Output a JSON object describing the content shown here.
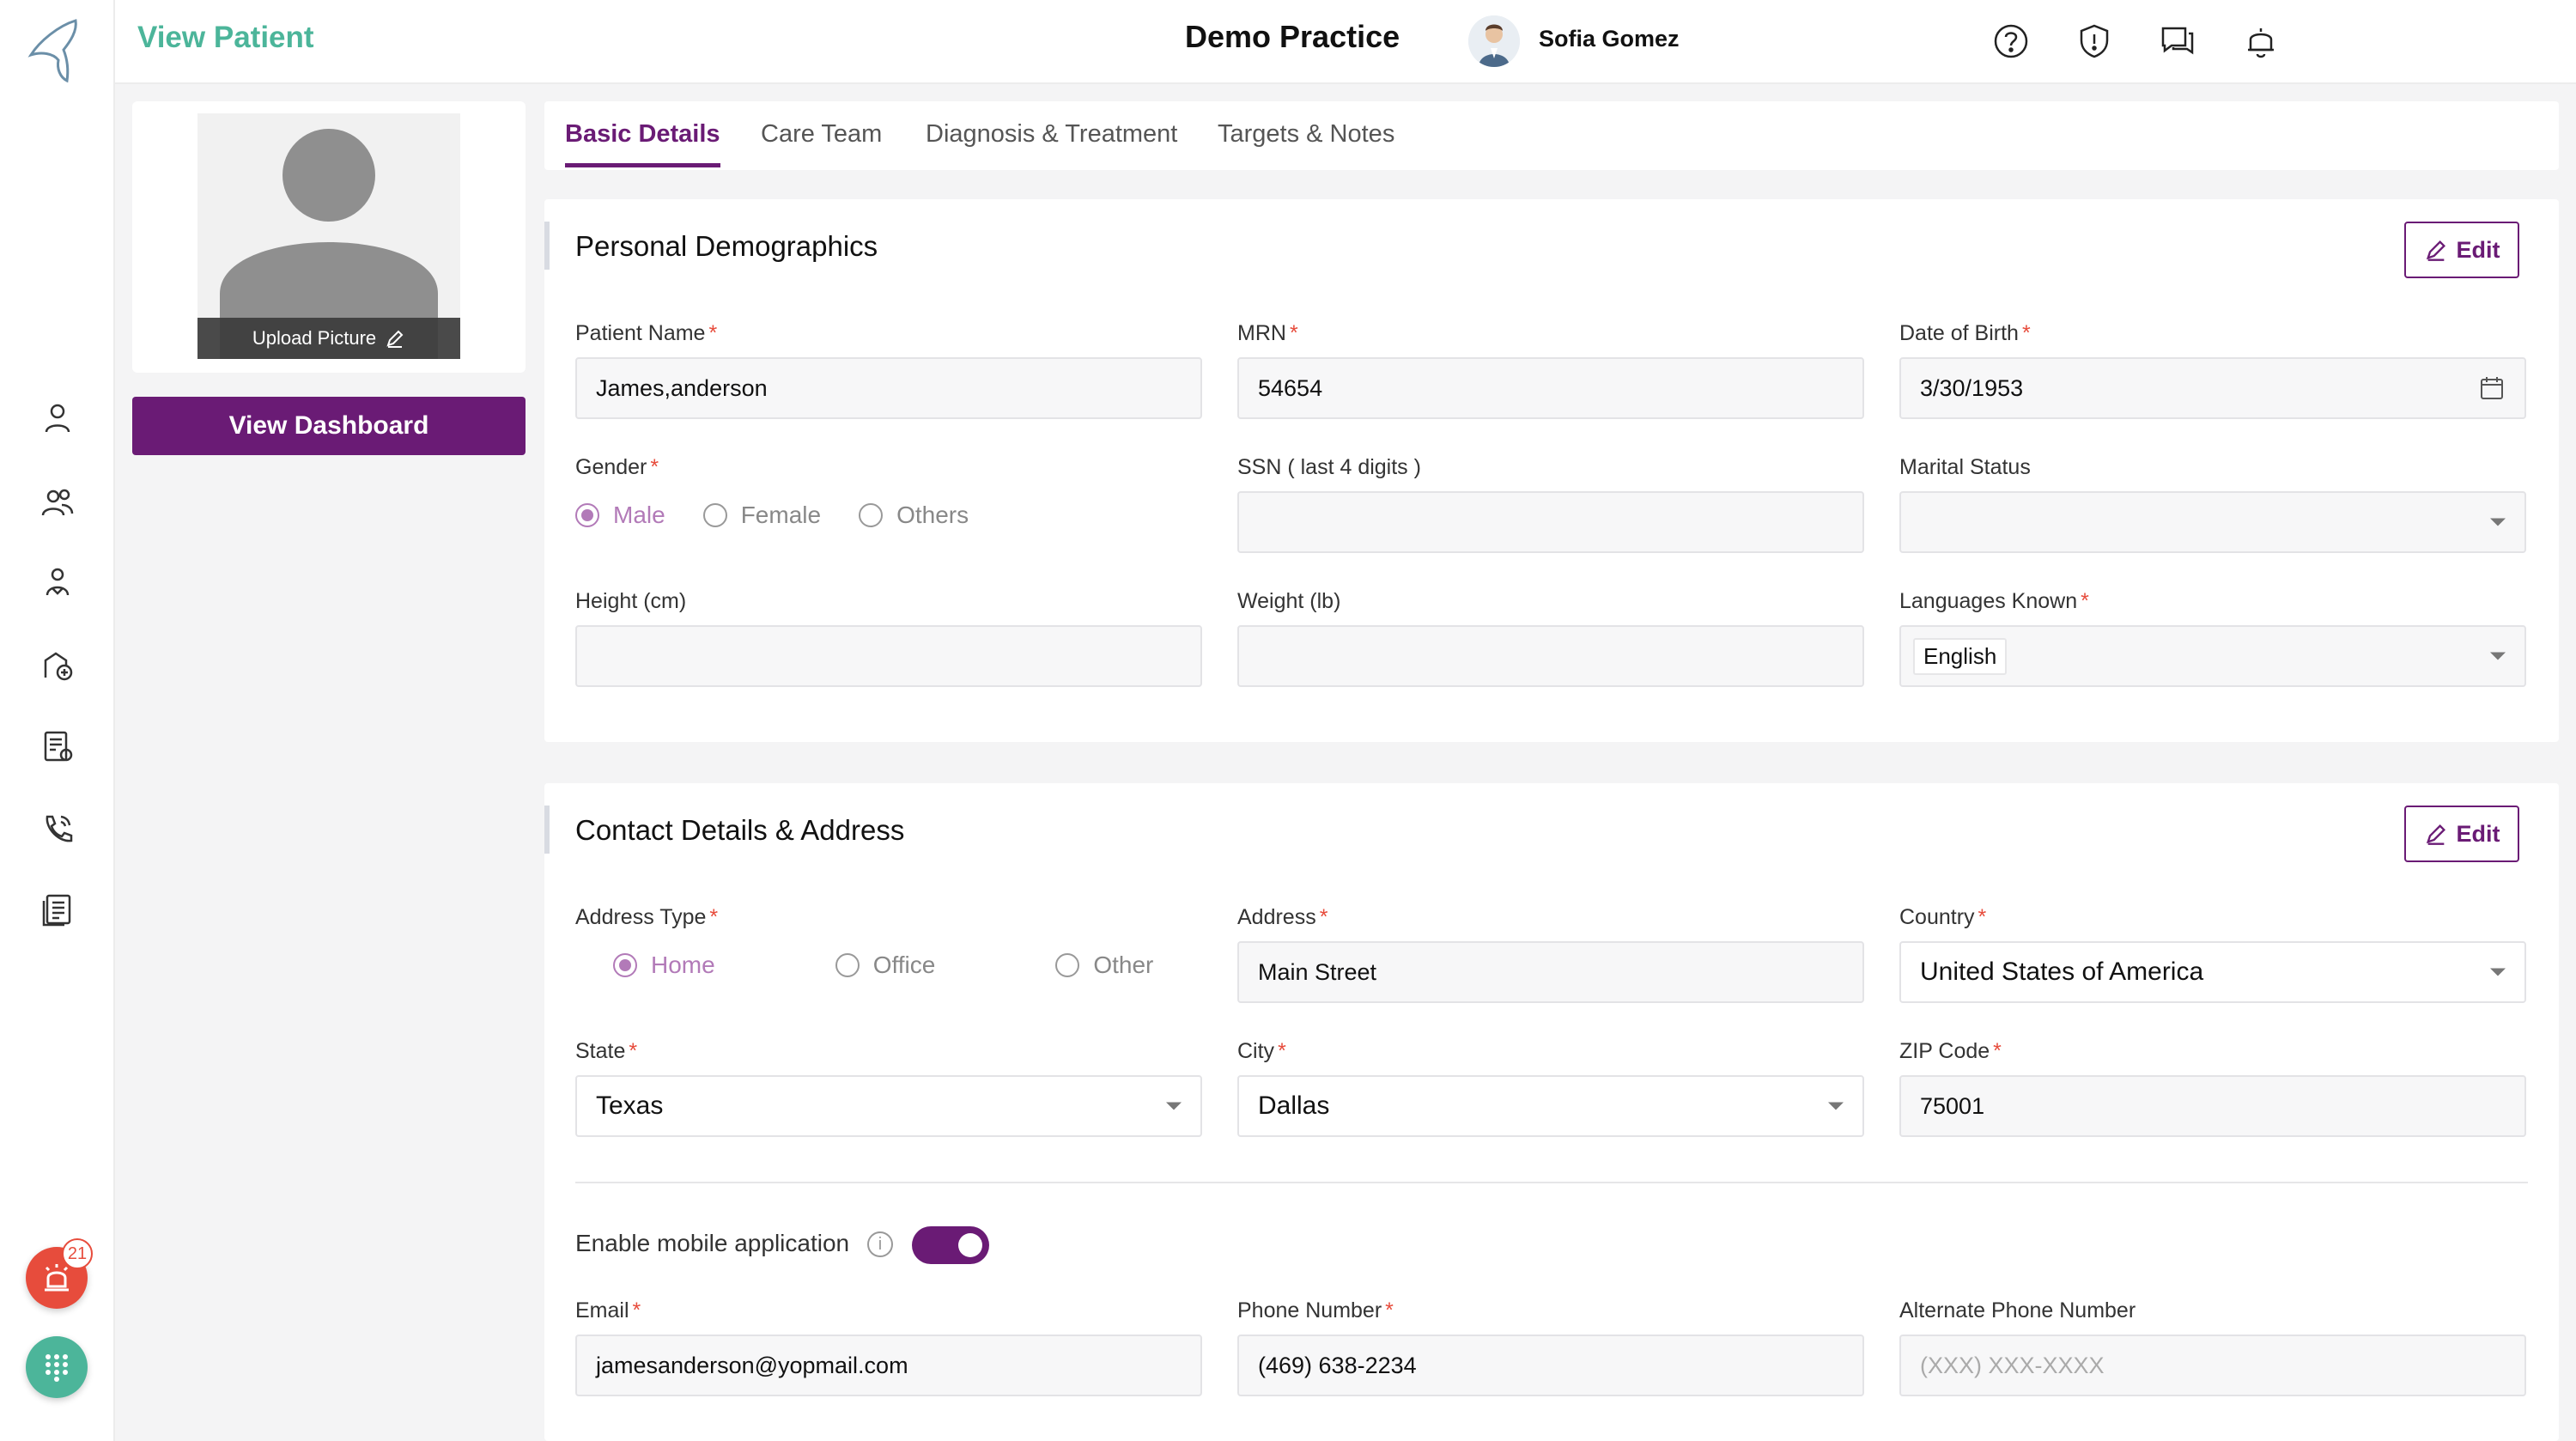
{
  "header": {
    "page_title": "View Patient",
    "practice_title": "Demo Practice",
    "user_name": "Sofia Gomez",
    "icons": [
      "help-icon",
      "shield-icon",
      "chat-icon",
      "bell-icon"
    ]
  },
  "sidebar": {
    "icons": [
      "patient-icon",
      "users-icon",
      "care-team-icon",
      "clinic-icon",
      "billing-icon",
      "phone-icon",
      "reports-icon"
    ],
    "alarm_badge": "21"
  },
  "profile": {
    "upload_label": "Upload Picture",
    "dashboard_button": "View Dashboard"
  },
  "tabs": [
    {
      "label": "Basic Details",
      "active": true
    },
    {
      "label": "Care Team",
      "active": false
    },
    {
      "label": "Diagnosis & Treatment",
      "active": false
    },
    {
      "label": "Targets & Notes",
      "active": false
    }
  ],
  "demographics": {
    "title": "Personal Demographics",
    "edit_label": "Edit",
    "patient_name_label": "Patient Name",
    "patient_name": "James,anderson",
    "mrn_label": "MRN",
    "mrn": "54654",
    "dob_label": "Date of Birth",
    "dob": "3/30/1953",
    "gender_label": "Gender",
    "gender_options": [
      "Male",
      "Female",
      "Others"
    ],
    "gender_selected": "Male",
    "ssn_label": "SSN ( last 4 digits )",
    "ssn": "",
    "marital_label": "Marital Status",
    "marital": "",
    "height_label": "Height (cm)",
    "height": "",
    "weight_label": "Weight (lb)",
    "weight": "",
    "languages_label": "Languages Known",
    "language": "English"
  },
  "contact": {
    "title": "Contact Details & Address",
    "edit_label": "Edit",
    "address_type_label": "Address Type",
    "address_type_options": [
      "Home",
      "Office",
      "Other"
    ],
    "address_type_selected": "Home",
    "address_label": "Address",
    "address": "Main Street",
    "country_label": "Country",
    "country": "United States of America",
    "state_label": "State",
    "state": "Texas",
    "city_label": "City",
    "city": "Dallas",
    "zip_label": "ZIP Code",
    "zip": "75001",
    "mobile_app_label": "Enable mobile application",
    "mobile_app_enabled": true,
    "email_label": "Email",
    "email": "jamesanderson@yopmail.com",
    "phone_label": "Phone Number",
    "phone": "(469) 638-2234",
    "alt_phone_label": "Alternate Phone Number",
    "alt_phone_placeholder": "(XXX) XXX-XXXX"
  },
  "colors": {
    "brand_purple": "#6a1b75",
    "brand_teal": "#4cb59a",
    "required_red": "#e74c3c"
  }
}
